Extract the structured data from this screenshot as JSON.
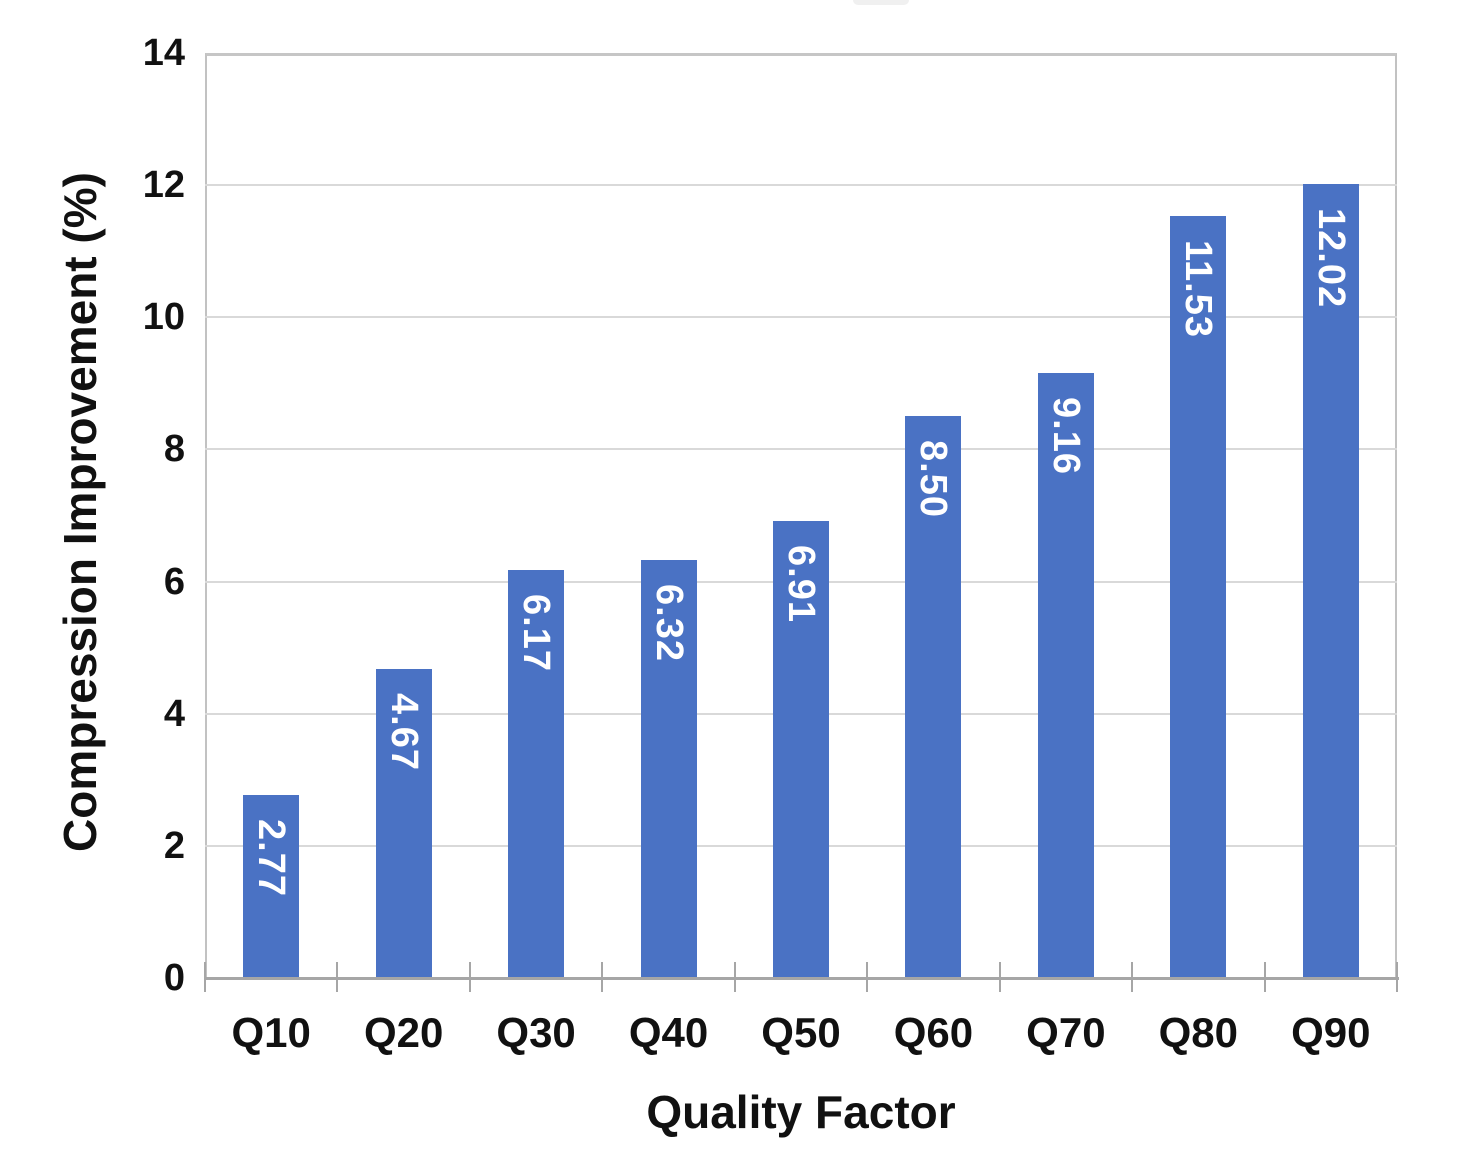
{
  "chart_data": {
    "type": "bar",
    "categories": [
      "Q10",
      "Q20",
      "Q30",
      "Q40",
      "Q50",
      "Q60",
      "Q70",
      "Q80",
      "Q90"
    ],
    "values": [
      2.77,
      4.67,
      6.17,
      6.32,
      6.91,
      8.5,
      9.16,
      11.53,
      12.02
    ],
    "bar_labels": [
      "2.77",
      "4.67",
      "6.17",
      "6.32",
      "6.91",
      "8.50",
      "9.16",
      "11.53",
      "12.02"
    ],
    "title": "",
    "xlabel": "Quality Factor",
    "ylabel": "Compression Improvement (%)",
    "ylim": [
      0,
      14
    ],
    "yticks": [
      0,
      2,
      4,
      6,
      8,
      10,
      12,
      14
    ],
    "grid": "horizontal",
    "legend_position": "none",
    "data_label_position": "inside-end",
    "data_label_rotation_deg": 90,
    "colors": {
      "bar": "#4a72c4",
      "data_label": "#ffffff",
      "gridline": "#d9d9d9",
      "plot_border": "#c2c2c2",
      "axis_line": "#a6a6a6",
      "text": "#111111",
      "background": "#ffffff"
    }
  }
}
